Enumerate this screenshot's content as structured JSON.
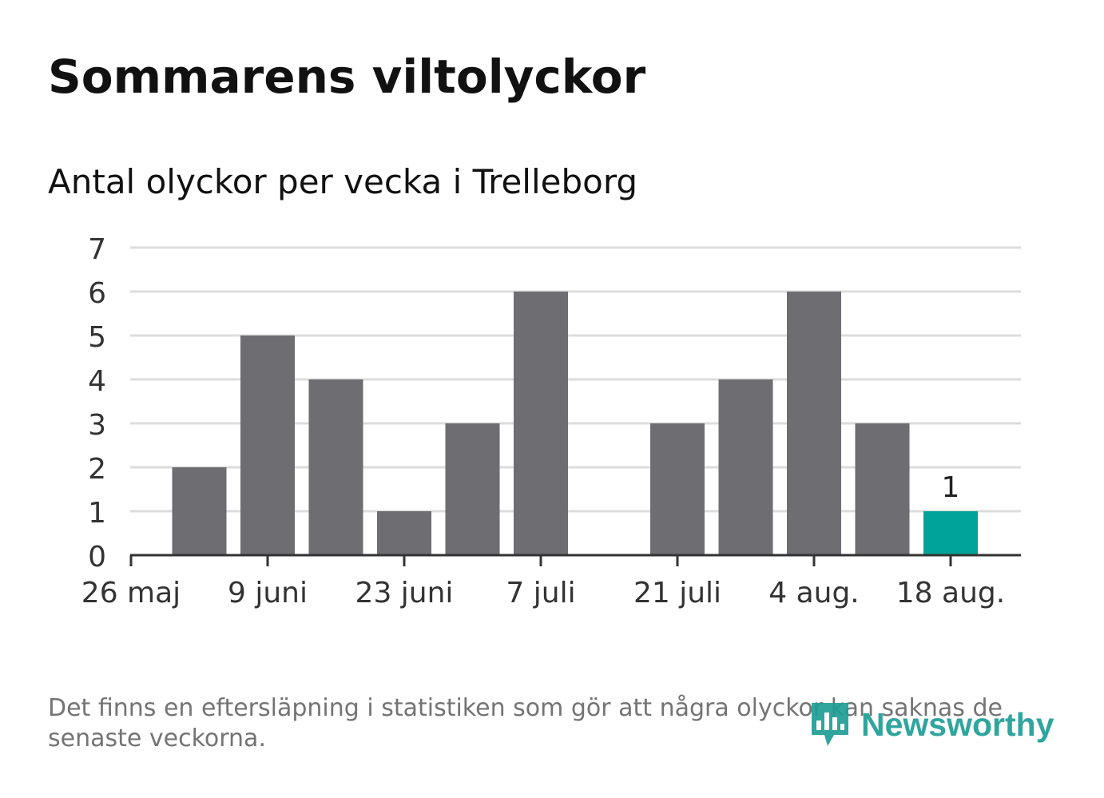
{
  "header": {
    "title": "Sommarens viltolyckor",
    "subtitle": "Antal olyckor per vecka i Trelleborg"
  },
  "footnote": "Det finns en eftersläpning i statistiken som gör att några olyckor kan saknas de senaste veckorna.",
  "logo": {
    "text": "Newsworthy",
    "icon": "bar-chart-pin-icon"
  },
  "colors": {
    "bar": "#6e6d72",
    "highlight": "#00a398",
    "grid": "#dcdcdc",
    "axis": "#333333",
    "text": "#333333",
    "logo": "#1f9e95"
  },
  "chart_data": {
    "type": "bar",
    "title": "Sommarens viltolyckor",
    "subtitle": "Antal olyckor per vecka i Trelleborg",
    "x_tick_labels": [
      "26 maj",
      "9 juni",
      "23 juni",
      "7 juli",
      "21 juli",
      "4 aug.",
      "18 aug."
    ],
    "y_ticks": [
      0,
      1,
      2,
      3,
      4,
      5,
      6,
      7
    ],
    "ylim": [
      0,
      7
    ],
    "grid": true,
    "values": [
      2,
      5,
      4,
      1,
      3,
      6,
      0,
      3,
      4,
      6,
      3,
      1
    ],
    "highlight_index": 11,
    "highlight_label": "1"
  }
}
